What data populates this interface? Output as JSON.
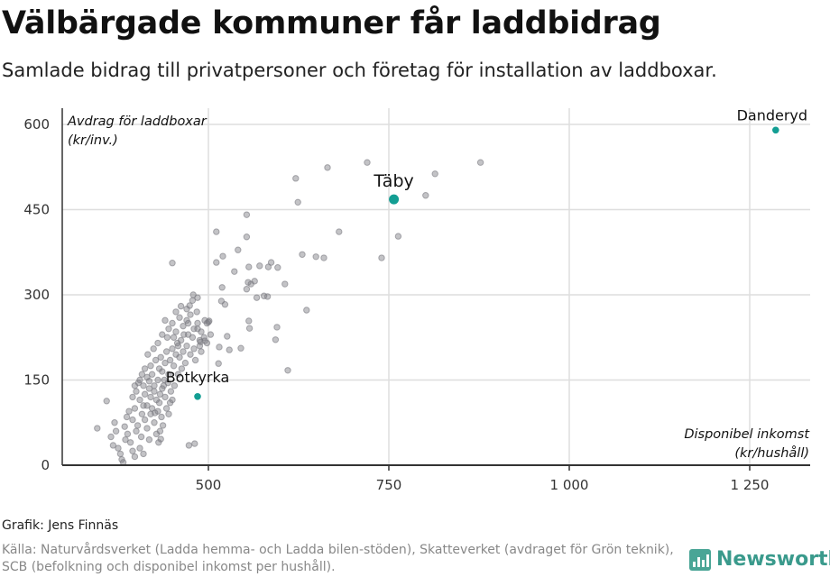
{
  "header": {
    "title": "Välbärgade kommuner får laddbidrag",
    "subtitle": "Samlade bidrag till privatpersoner och företag för installation av laddboxar."
  },
  "footer": {
    "credit": "Grafik: Jens Finnäs",
    "source": "Källa: Naturvårdsverket (Ladda hemma- och Ladda bilen-stöden), Skatteverket (avdraget för Grön teknik), SCB (befolkning och disponibel inkomst per hushåll).",
    "logo_text": "Newsworthy"
  },
  "chart_data": {
    "type": "scatter",
    "title": "Välbärgade kommuner får laddbidrag",
    "ylabel_line1": "Avdrag för laddboxar",
    "ylabel_line2": "(kr/inv.)",
    "xlabel_line1": "Disponibel inkomst",
    "xlabel_line2": "(kr/hushåll)",
    "xlim": [
      297,
      1334
    ],
    "ylim": [
      0,
      620
    ],
    "grid": true,
    "x_ticks": [
      500,
      750,
      1000,
      1250
    ],
    "x_tick_labels": [
      "500",
      "750",
      "1 000",
      "1 250"
    ],
    "y_ticks": [
      0,
      150,
      300,
      450,
      600
    ],
    "y_tick_labels": [
      "0",
      "150",
      "300",
      "450",
      "600"
    ],
    "colors": {
      "points": "#7a7a80",
      "highlight": "#139e93"
    },
    "highlighted": [
      {
        "name": "Danderyd",
        "x": 1286,
        "y": 590
      },
      {
        "name": "Täby",
        "x": 757,
        "y": 468
      },
      {
        "name": "Botkyrka",
        "x": 485,
        "y": 121
      }
    ],
    "points": [
      [
        877,
        533
      ],
      [
        814,
        513
      ],
      [
        720,
        533
      ],
      [
        665,
        524
      ],
      [
        621,
        505
      ],
      [
        624,
        463
      ],
      [
        801,
        475
      ],
      [
        763,
        403
      ],
      [
        740,
        365
      ],
      [
        681,
        411
      ],
      [
        649,
        367
      ],
      [
        660,
        365
      ],
      [
        630,
        371
      ],
      [
        636,
        273
      ],
      [
        610,
        167
      ],
      [
        595,
        243
      ],
      [
        606,
        319
      ],
      [
        596,
        348
      ],
      [
        587,
        357
      ],
      [
        583,
        349
      ],
      [
        571,
        351
      ],
      [
        577,
        298
      ],
      [
        582,
        297
      ],
      [
        567,
        295
      ],
      [
        564,
        324
      ],
      [
        555,
        322
      ],
      [
        553,
        310
      ],
      [
        556,
        349
      ],
      [
        553,
        441
      ],
      [
        553,
        402
      ],
      [
        541,
        379
      ],
      [
        536,
        341
      ],
      [
        520,
        368
      ],
      [
        511,
        411
      ],
      [
        511,
        357
      ],
      [
        519,
        313
      ],
      [
        518,
        289
      ],
      [
        523,
        283
      ],
      [
        556,
        254
      ],
      [
        557,
        241
      ],
      [
        545,
        206
      ],
      [
        529,
        203
      ],
      [
        526,
        227
      ],
      [
        515,
        208
      ],
      [
        514,
        179
      ],
      [
        593,
        221
      ],
      [
        559,
        319
      ],
      [
        450,
        356
      ],
      [
        489,
        217
      ],
      [
        495,
        219
      ],
      [
        501,
        254
      ],
      [
        473,
        35
      ],
      [
        481,
        38
      ],
      [
        434,
        46
      ],
      [
        431,
        40
      ],
      [
        479,
        300
      ],
      [
        485,
        295
      ],
      [
        474,
        281
      ],
      [
        359,
        113
      ],
      [
        346,
        65
      ],
      [
        375,
        30
      ],
      [
        378,
        20
      ],
      [
        380,
        10
      ],
      [
        382,
        5
      ],
      [
        385,
        45
      ],
      [
        388,
        55
      ],
      [
        392,
        40
      ],
      [
        395,
        25
      ],
      [
        398,
        15
      ],
      [
        400,
        60
      ],
      [
        402,
        70
      ],
      [
        405,
        30
      ],
      [
        407,
        50
      ],
      [
        410,
        20
      ],
      [
        412,
        80
      ],
      [
        415,
        65
      ],
      [
        418,
        45
      ],
      [
        420,
        90
      ],
      [
        422,
        100
      ],
      [
        425,
        75
      ],
      [
        428,
        55
      ],
      [
        430,
        95
      ],
      [
        432,
        110
      ],
      [
        435,
        85
      ],
      [
        437,
        70
      ],
      [
        440,
        120
      ],
      [
        442,
        100
      ],
      [
        445,
        90
      ],
      [
        448,
        130
      ],
      [
        450,
        115
      ],
      [
        370,
        75
      ],
      [
        372,
        60
      ],
      [
        390,
        95
      ],
      [
        395,
        80
      ],
      [
        398,
        100
      ],
      [
        405,
        115
      ],
      [
        408,
        90
      ],
      [
        412,
        125
      ],
      [
        415,
        105
      ],
      [
        418,
        135
      ],
      [
        400,
        130
      ],
      [
        403,
        145
      ],
      [
        405,
        150
      ],
      [
        408,
        160
      ],
      [
        410,
        140
      ],
      [
        412,
        170
      ],
      [
        415,
        155
      ],
      [
        418,
        148
      ],
      [
        420,
        175
      ],
      [
        422,
        160
      ],
      [
        425,
        140
      ],
      [
        427,
        185
      ],
      [
        430,
        150
      ],
      [
        432,
        170
      ],
      [
        434,
        190
      ],
      [
        436,
        165
      ],
      [
        438,
        140
      ],
      [
        440,
        180
      ],
      [
        442,
        200
      ],
      [
        445,
        160
      ],
      [
        447,
        185
      ],
      [
        450,
        205
      ],
      [
        452,
        175
      ],
      [
        455,
        195
      ],
      [
        457,
        215
      ],
      [
        460,
        190
      ],
      [
        462,
        220
      ],
      [
        465,
        200
      ],
      [
        468,
        180
      ],
      [
        470,
        210
      ],
      [
        472,
        230
      ],
      [
        475,
        195
      ],
      [
        478,
        225
      ],
      [
        480,
        205
      ],
      [
        482,
        185
      ],
      [
        485,
        240
      ],
      [
        488,
        220
      ],
      [
        490,
        200
      ],
      [
        420,
        120
      ],
      [
        425,
        130
      ],
      [
        428,
        115
      ],
      [
        433,
        125
      ],
      [
        436,
        135
      ],
      [
        439,
        150
      ],
      [
        444,
        145
      ],
      [
        395,
        120
      ],
      [
        398,
        140
      ],
      [
        416,
        195
      ],
      [
        424,
        205
      ],
      [
        430,
        215
      ],
      [
        436,
        230
      ],
      [
        443,
        225
      ],
      [
        445,
        240
      ],
      [
        450,
        250
      ],
      [
        455,
        235
      ],
      [
        460,
        260
      ],
      [
        465,
        245
      ],
      [
        470,
        255
      ],
      [
        475,
        265
      ],
      [
        480,
        240
      ],
      [
        485,
        250
      ],
      [
        490,
        235
      ],
      [
        495,
        255
      ],
      [
        498,
        250
      ],
      [
        500,
        252
      ],
      [
        470,
        275
      ],
      [
        478,
        290
      ],
      [
        455,
        270
      ],
      [
        462,
        280
      ],
      [
        440,
        255
      ],
      [
        452,
        225
      ],
      [
        458,
        210
      ],
      [
        466,
        230
      ],
      [
        472,
        250
      ],
      [
        484,
        270
      ],
      [
        488,
        210
      ],
      [
        494,
        225
      ],
      [
        498,
        215
      ],
      [
        503,
        230
      ],
      [
        365,
        50
      ],
      [
        368,
        35
      ],
      [
        384,
        68
      ],
      [
        387,
        85
      ],
      [
        410,
        105
      ],
      [
        426,
        92
      ],
      [
        433,
        60
      ],
      [
        447,
        110
      ],
      [
        453,
        140
      ],
      [
        458,
        160
      ],
      [
        463,
        170
      ]
    ]
  }
}
